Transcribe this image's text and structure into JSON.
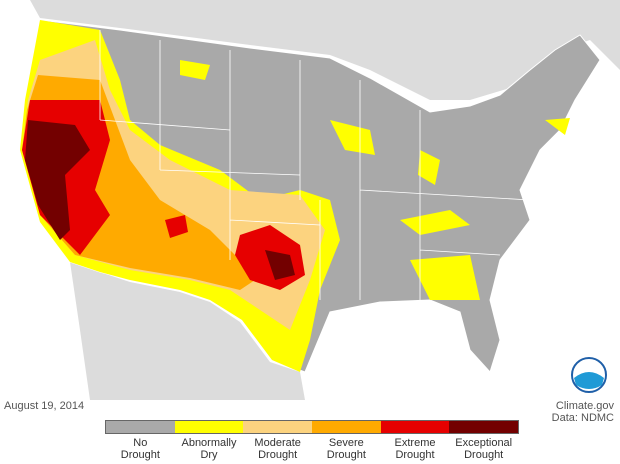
{
  "footer": {
    "date": "August 19, 2014",
    "source": "Climate.gov",
    "data_credit": "Data: NDMC"
  },
  "legend": {
    "items": [
      {
        "label": "No Drought",
        "color": "#a9a9a9"
      },
      {
        "label": "Abnormally Dry",
        "color": "#ffff00"
      },
      {
        "label": "Moderate Drought",
        "color": "#fcd37f"
      },
      {
        "label": "Severe Drought",
        "color": "#ffaa00"
      },
      {
        "label": "Extreme Drought",
        "color": "#e60000"
      },
      {
        "label": "Exceptional Drought",
        "color": "#730000"
      }
    ]
  }
}
